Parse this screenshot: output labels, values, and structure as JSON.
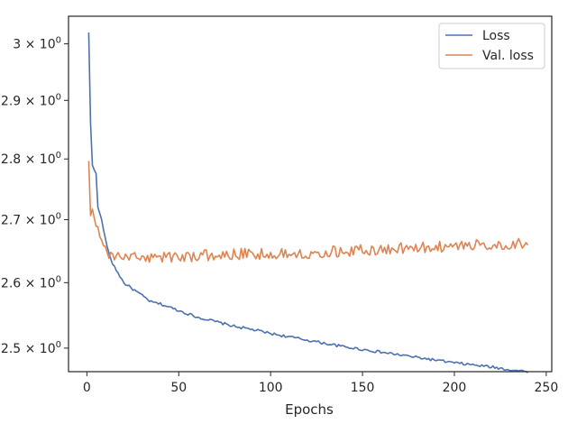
{
  "chart_data": {
    "type": "line",
    "title": "",
    "xlabel": "Epochs",
    "ylabel": "",
    "xlim": [
      -10,
      253
    ],
    "ylim": [
      2.465,
      3.05
    ],
    "yscale": "log",
    "grid": false,
    "legend_position": "top-right",
    "x_ticks": [
      0,
      50,
      100,
      150,
      200,
      250
    ],
    "x_tick_labels": [
      "0",
      "50",
      "100",
      "150",
      "200",
      "250"
    ],
    "y_ticks": [
      2.5,
      2.6,
      2.7,
      2.8,
      2.9,
      3.0
    ],
    "y_tick_mantissas": [
      "2.5",
      "2.6",
      "2.7",
      "2.8",
      "2.9",
      "3"
    ],
    "y_tick_base": "10",
    "y_tick_exponent": "0",
    "x_range": [
      1,
      240
    ],
    "series": [
      {
        "name": "Loss",
        "color": "#4c72b0",
        "anchors": [
          [
            1,
            3.02
          ],
          [
            2,
            2.86
          ],
          [
            3,
            2.79
          ],
          [
            5,
            2.775
          ],
          [
            6,
            2.72
          ],
          [
            8,
            2.7
          ],
          [
            10,
            2.67
          ],
          [
            12,
            2.645
          ],
          [
            14,
            2.63
          ],
          [
            16,
            2.62
          ],
          [
            18,
            2.61
          ],
          [
            20,
            2.6
          ],
          [
            25,
            2.59
          ],
          [
            30,
            2.58
          ],
          [
            35,
            2.57
          ],
          [
            40,
            2.567
          ],
          [
            50,
            2.557
          ],
          [
            60,
            2.547
          ],
          [
            70,
            2.54
          ],
          [
            80,
            2.533
          ],
          [
            90,
            2.528
          ],
          [
            100,
            2.522
          ],
          [
            110,
            2.517
          ],
          [
            120,
            2.512
          ],
          [
            130,
            2.507
          ],
          [
            140,
            2.502
          ],
          [
            150,
            2.498
          ],
          [
            160,
            2.494
          ],
          [
            170,
            2.49
          ],
          [
            180,
            2.486
          ],
          [
            190,
            2.482
          ],
          [
            200,
            2.478
          ],
          [
            210,
            2.475
          ],
          [
            220,
            2.472
          ],
          [
            230,
            2.468
          ],
          [
            240,
            2.465
          ]
        ],
        "noise": 0.002
      },
      {
        "name": "Val. loss",
        "color": "#dd8452",
        "anchors": [
          [
            1,
            2.8
          ],
          [
            2,
            2.71
          ],
          [
            3,
            2.715
          ],
          [
            4,
            2.7
          ],
          [
            5,
            2.69
          ],
          [
            6,
            2.685
          ],
          [
            8,
            2.665
          ],
          [
            10,
            2.655
          ],
          [
            12,
            2.645
          ],
          [
            15,
            2.64
          ],
          [
            20,
            2.64
          ],
          [
            40,
            2.64
          ],
          [
            60,
            2.642
          ],
          [
            80,
            2.645
          ],
          [
            100,
            2.645
          ],
          [
            120,
            2.647
          ],
          [
            140,
            2.65
          ],
          [
            160,
            2.652
          ],
          [
            180,
            2.655
          ],
          [
            200,
            2.658
          ],
          [
            220,
            2.66
          ],
          [
            240,
            2.662
          ]
        ],
        "noise": 0.009
      }
    ]
  }
}
